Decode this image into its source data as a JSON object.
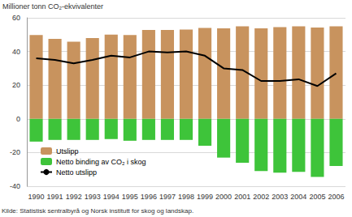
{
  "chart_data": {
    "type": "bar",
    "y_label": "Millioner tonn CO₂-ekvivalenter",
    "source": "Kilde: Statistisk sentralbyrå og Norsk institutt for skog og landskap.",
    "categories": [
      "1990",
      "1991",
      "1992",
      "1993",
      "1994",
      "1995",
      "1996",
      "1997",
      "1998",
      "1999",
      "2000",
      "2001",
      "2002",
      "2003",
      "2004",
      "2005",
      "2006"
    ],
    "series": [
      {
        "name": "Utslipp",
        "type": "bar",
        "color": "#c8935e",
        "values": [
          49.8,
          47.5,
          45.8,
          48,
          50,
          49.8,
          52.8,
          52.8,
          53,
          54,
          53.8,
          55,
          53.8,
          54.5,
          55,
          54.2,
          55
        ]
      },
      {
        "name": "Netto binding av CO₂ i skog",
        "type": "bar",
        "color": "#3ec43a",
        "values": [
          -13.5,
          -12.5,
          -12.5,
          -12.5,
          -12,
          -13,
          -12.5,
          -12.5,
          -12.5,
          -16,
          -23,
          -26,
          -31,
          -32,
          -31.5,
          -34.5,
          -28
        ]
      },
      {
        "name": "Netto utslipp",
        "type": "line",
        "color": "#000000",
        "values": [
          36,
          35,
          33,
          35,
          37.5,
          36.5,
          40,
          39.5,
          40,
          37.5,
          30,
          29,
          22.5,
          22.5,
          23.5,
          19.5,
          27
        ]
      }
    ],
    "stacked": true,
    "ylim": [
      -40,
      60
    ],
    "yticks": [
      -40,
      -20,
      0,
      20,
      40,
      60
    ],
    "grid": true,
    "legend": "lower left"
  }
}
